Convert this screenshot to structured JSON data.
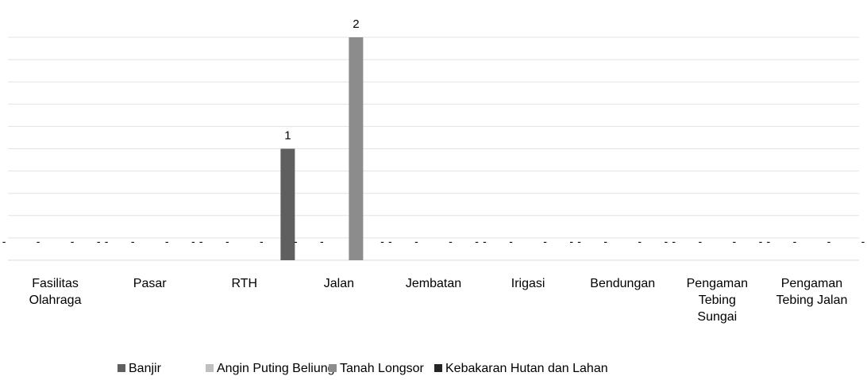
{
  "chart_data": {
    "type": "bar",
    "categories": [
      [
        "Fasilitas",
        "Olahraga"
      ],
      [
        "Pasar"
      ],
      [
        "RTH"
      ],
      [
        "Jalan"
      ],
      [
        "Jembatan"
      ],
      [
        "Irigasi"
      ],
      [
        "Bendungan"
      ],
      [
        "Pengaman",
        "Tebing",
        "Sungai"
      ],
      [
        "Pengaman",
        "Tebing Jalan"
      ]
    ],
    "series": [
      {
        "name": "Banjir",
        "color": "#5f5f5f",
        "values": [
          0,
          0,
          0,
          1,
          0,
          0,
          0,
          0,
          0
        ]
      },
      {
        "name": "Angin Puting Beliung",
        "color": "#bfbfbf",
        "values": [
          0,
          0,
          0,
          0,
          0,
          0,
          0,
          0,
          0
        ]
      },
      {
        "name": "Tanah Longsor",
        "color": "#8c8c8c",
        "values": [
          0,
          0,
          0,
          2,
          0,
          0,
          0,
          0,
          0
        ]
      },
      {
        "name": "Kebakaran Hutan dan Lahan",
        "color": "#262626",
        "values": [
          0,
          0,
          0,
          0,
          0,
          0,
          0,
          0,
          0
        ]
      }
    ],
    "zero_label": "-",
    "ylim": [
      0,
      2
    ],
    "grid": true,
    "legend": "bottom",
    "title": "",
    "xlabel": "",
    "ylabel": ""
  }
}
